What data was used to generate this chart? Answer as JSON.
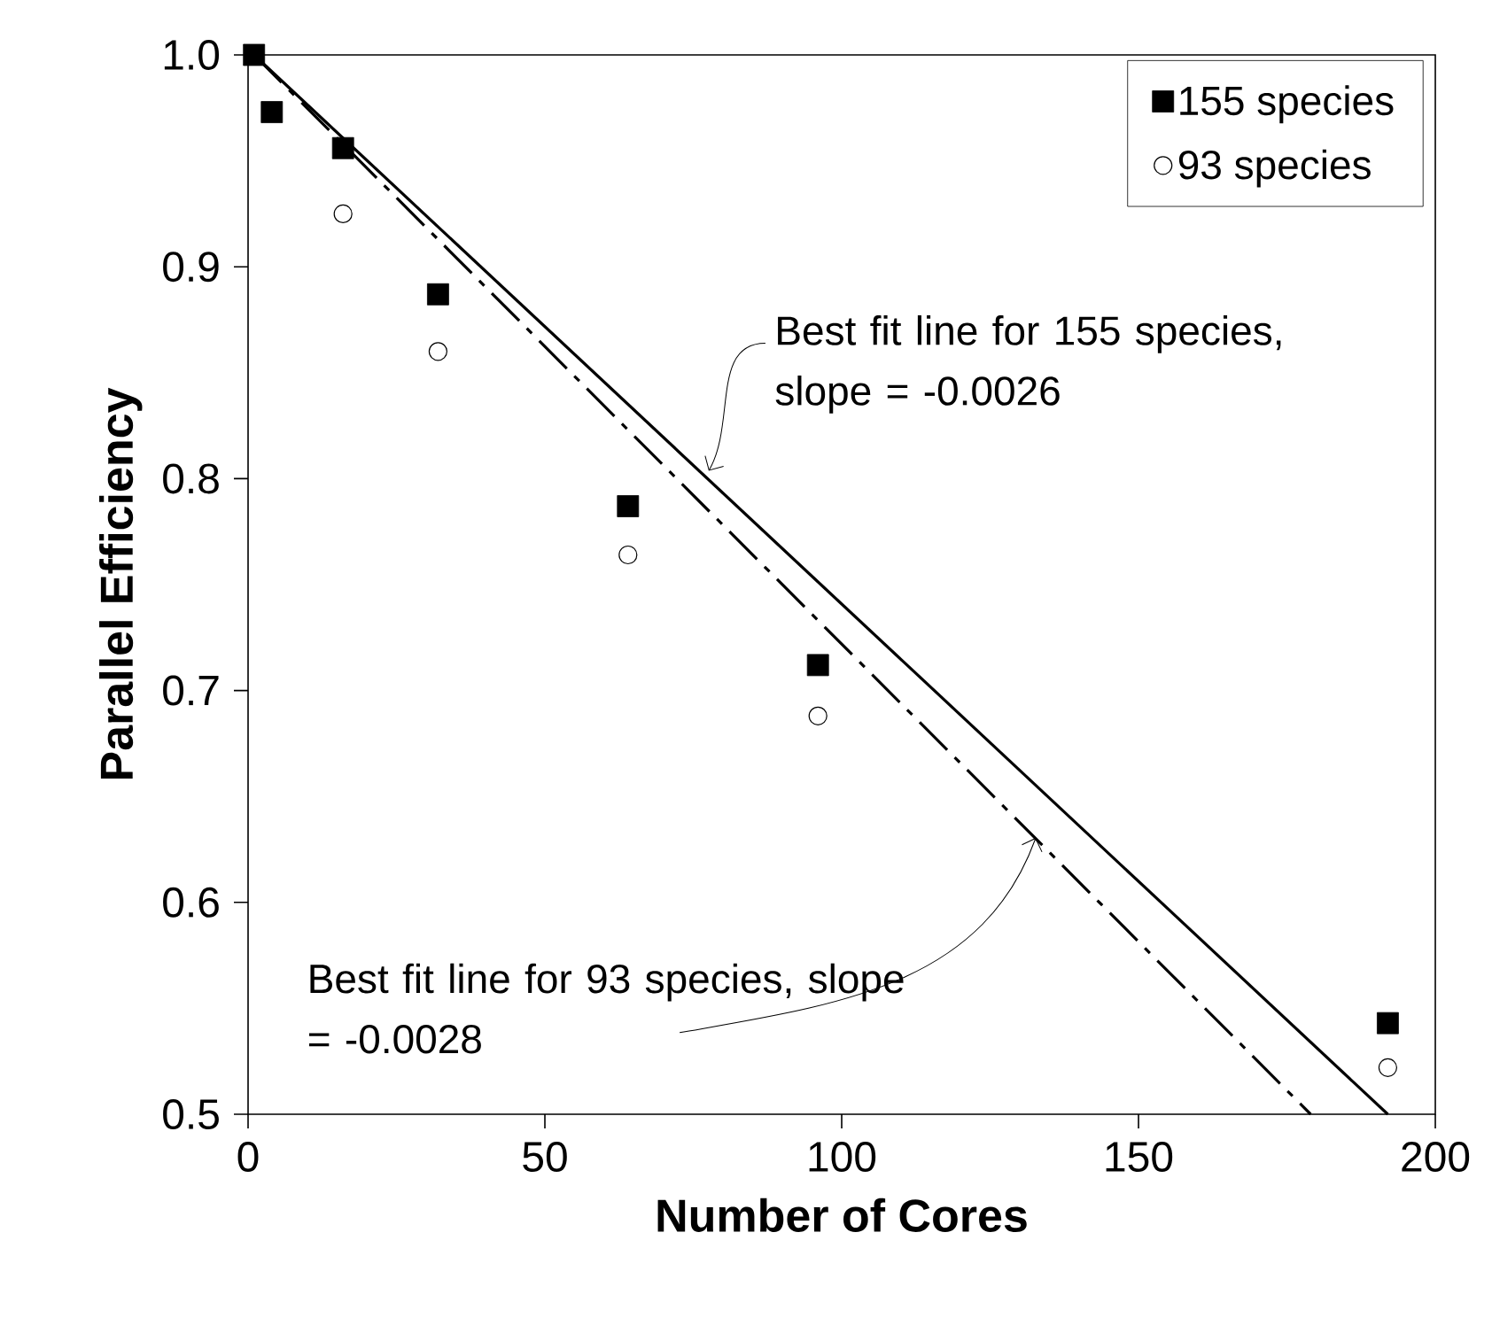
{
  "chart_data": {
    "type": "scatter",
    "xlabel": "Number of Cores",
    "ylabel": "Parallel Efficiency",
    "xlim": [
      0,
      200
    ],
    "ylim": [
      0.5,
      1.0
    ],
    "xticks": [
      0,
      50,
      100,
      150,
      200
    ],
    "yticks": [
      {
        "value": 0.5,
        "label": "0.5"
      },
      {
        "value": 0.6,
        "label": "0.6"
      },
      {
        "value": 0.7,
        "label": "0.7"
      },
      {
        "value": 0.8,
        "label": "0.8"
      },
      {
        "value": 0.9,
        "label": "0.9"
      },
      {
        "value": 1.0,
        "label": "1.0"
      }
    ],
    "grid": false,
    "legend": "top right",
    "series": [
      {
        "name": "155 species",
        "color": "#000000",
        "marker": "square",
        "x": [
          1,
          4,
          16,
          32,
          64,
          96,
          192
        ],
        "values": [
          1.0,
          0.973,
          0.956,
          0.887,
          0.787,
          0.712,
          0.543
        ]
      },
      {
        "name": "93 species",
        "color": "#000000",
        "marker": "circle",
        "x": [
          16,
          32,
          64,
          96,
          192
        ],
        "values": [
          0.925,
          0.86,
          0.764,
          0.688,
          0.522
        ]
      },
      {
        "type": "line",
        "color": "#000000",
        "line_style": "solid",
        "x": [
          1,
          192
        ],
        "values": [
          1.0,
          0.5
        ]
      },
      {
        "type": "line",
        "color": "#000000",
        "line_style": "dashdot",
        "x": [
          1,
          179
        ],
        "values": [
          1.0,
          0.5
        ]
      }
    ],
    "annotations": [
      {
        "text": "Best fit line for 155 species, slope = -0.0026",
        "x": 77,
        "y": 0.802
      },
      {
        "text": "Best fit line for 93 species, slope = -0.0028",
        "x": 133,
        "y": 0.633
      }
    ]
  }
}
